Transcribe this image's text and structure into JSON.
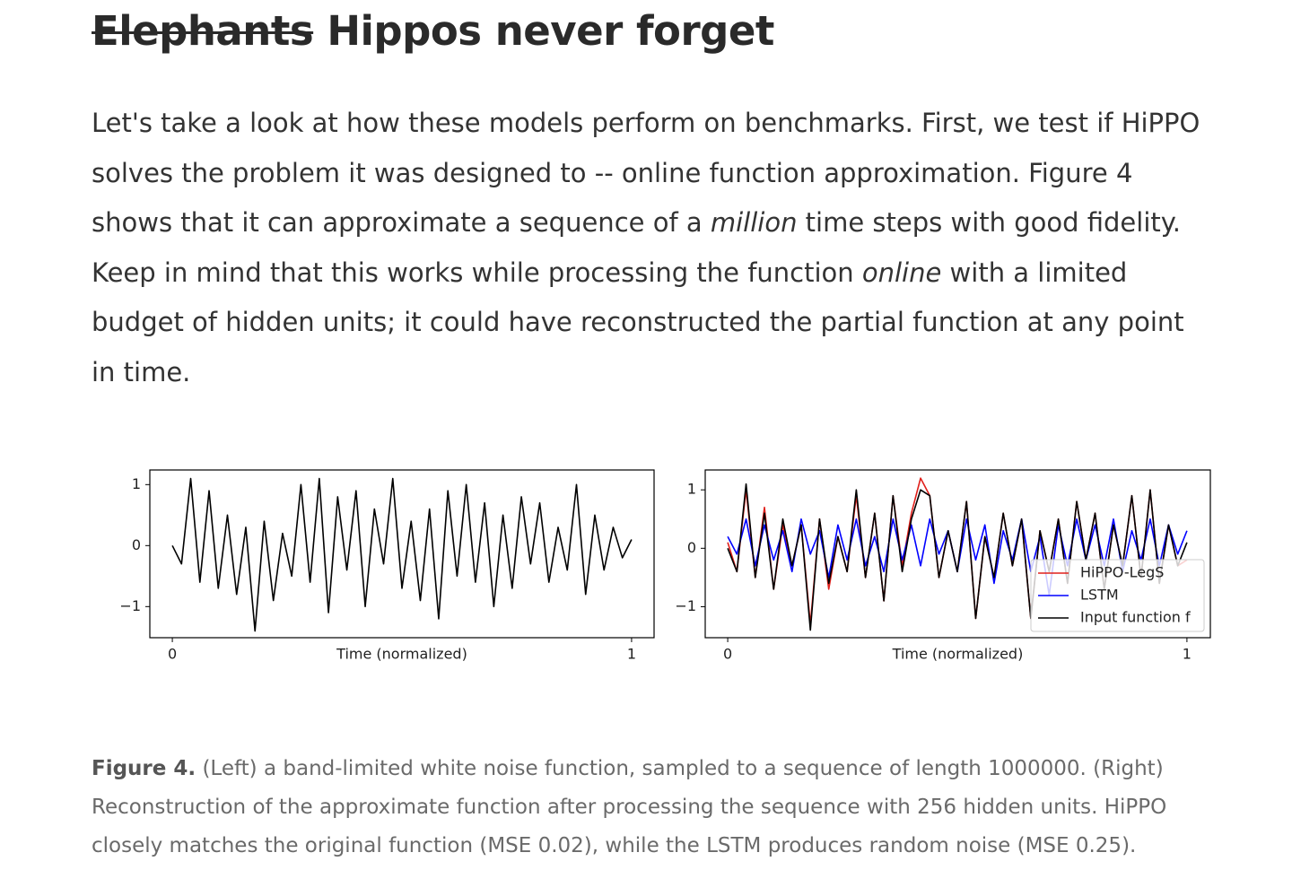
{
  "heading": {
    "struck": "Elephants",
    "title": "Hippos never forget"
  },
  "paragraph": {
    "parts": [
      "Let's take a look at how these models perform on benchmarks. First, we test if HiPPO solves the problem it was designed to -- online function approximation. Figure 4 shows that it can approximate a sequence of a ",
      "million",
      " time steps with good fidelity. Keep in mind that this works while processing the function ",
      "online",
      " with a limited budget of hidden units; it could have reconstructed the partial function at any point in time."
    ]
  },
  "chart_data": [
    {
      "type": "line",
      "xlabel": "Time (normalized)",
      "xlim": [
        -0.049,
        1.049
      ],
      "xticks": [
        0,
        1
      ],
      "ylim": [
        -1.51,
        1.24
      ],
      "yticks": [
        {
          "value": -1,
          "label": "−1"
        },
        0,
        1
      ],
      "x": [
        0,
        0.02,
        0.04,
        0.06,
        0.08,
        0.1,
        0.12,
        0.14,
        0.16,
        0.18,
        0.2,
        0.22,
        0.24,
        0.26,
        0.28,
        0.3,
        0.32,
        0.34,
        0.36,
        0.38,
        0.4,
        0.42,
        0.44,
        0.46,
        0.48,
        0.5,
        0.52,
        0.54,
        0.56,
        0.58,
        0.6,
        0.62,
        0.64,
        0.66,
        0.68,
        0.7,
        0.72,
        0.74,
        0.76,
        0.78,
        0.8,
        0.82,
        0.84,
        0.86,
        0.88,
        0.9,
        0.92,
        0.94,
        0.96,
        0.98,
        1
      ],
      "series": [
        {
          "color": "#000000",
          "values": [
            0,
            -0.3,
            1.1,
            -0.6,
            0.9,
            -0.7,
            0.5,
            -0.8,
            0.3,
            -1.4,
            0.4,
            -0.9,
            0.2,
            -0.5,
            1.0,
            -0.6,
            1.1,
            -1.1,
            0.8,
            -0.4,
            0.9,
            -1.0,
            0.6,
            -0.3,
            1.1,
            -0.7,
            0.4,
            -0.9,
            0.6,
            -1.2,
            0.9,
            -0.5,
            1.0,
            -0.6,
            0.7,
            -1.0,
            0.5,
            -0.7,
            0.8,
            -0.3,
            0.7,
            -0.6,
            0.3,
            -0.4,
            1.0,
            -0.8,
            0.5,
            -0.4,
            0.3,
            -0.2,
            0.1
          ]
        }
      ]
    },
    {
      "type": "line",
      "xlabel": "Time (normalized)",
      "xlim": [
        -0.049,
        1.051
      ],
      "xticks": [
        0,
        1
      ],
      "ylim": [
        -1.53,
        1.34
      ],
      "yticks": [
        {
          "value": -1,
          "label": "−1"
        },
        0,
        1
      ],
      "legend": "lower right",
      "x": [
        0,
        0.02,
        0.04,
        0.06,
        0.08,
        0.1,
        0.12,
        0.14,
        0.16,
        0.18,
        0.2,
        0.22,
        0.24,
        0.26,
        0.28,
        0.3,
        0.32,
        0.34,
        0.36,
        0.38,
        0.4,
        0.42,
        0.44,
        0.46,
        0.48,
        0.5,
        0.52,
        0.54,
        0.56,
        0.58,
        0.6,
        0.62,
        0.64,
        0.66,
        0.68,
        0.7,
        0.72,
        0.74,
        0.76,
        0.78,
        0.8,
        0.82,
        0.84,
        0.86,
        0.88,
        0.9,
        0.92,
        0.94,
        0.96,
        0.98,
        1
      ],
      "series": [
        {
          "name": "HiPPO-LegS",
          "color": "#e0201b",
          "values": [
            0.1,
            -0.4,
            1.0,
            -0.5,
            0.7,
            -0.7,
            0.4,
            -0.3,
            0.4,
            -1.3,
            0.5,
            -0.7,
            0.2,
            -0.4,
            0.9,
            -0.5,
            0.6,
            -0.9,
            0.9,
            -0.3,
            0.6,
            1.2,
            0.9,
            -0.5,
            0.3,
            -0.4,
            0.8,
            -1.2,
            0.2,
            -0.5,
            0.6,
            -0.3,
            0.5,
            -1.2,
            0.3,
            -0.4,
            0.5,
            -0.6,
            0.8,
            -0.2,
            0.6,
            -0.7,
            0.4,
            -0.3,
            0.9,
            -0.5,
            1.0,
            -0.6,
            0.4,
            -0.3,
            -0.2
          ]
        },
        {
          "name": "LSTM",
          "color": "#0000ff",
          "values": [
            0.2,
            -0.1,
            0.5,
            -0.3,
            0.4,
            -0.2,
            0.3,
            -0.4,
            0.5,
            -0.1,
            0.3,
            -0.5,
            0.4,
            -0.2,
            0.5,
            -0.3,
            0.2,
            -0.4,
            0.5,
            -0.2,
            0.4,
            -0.3,
            0.5,
            -0.1,
            0.3,
            -0.4,
            0.5,
            -0.2,
            0.4,
            -0.6,
            0.3,
            -0.2,
            0.5,
            -0.4,
            0.2,
            -0.8,
            0.4,
            -0.3,
            0.5,
            -0.2,
            0.4,
            -0.3,
            0.5,
            -0.4,
            0.3,
            -0.2,
            0.5,
            -0.3,
            0.4,
            -0.1,
            0.3
          ]
        },
        {
          "name": "Input function f",
          "color": "#000000",
          "values": [
            0,
            -0.4,
            1.1,
            -0.5,
            0.6,
            -0.7,
            0.5,
            -0.3,
            0.4,
            -1.4,
            0.5,
            -0.6,
            0.2,
            -0.4,
            1.0,
            -0.5,
            0.6,
            -0.9,
            0.9,
            -0.4,
            0.5,
            1.0,
            0.9,
            -0.5,
            0.3,
            -0.4,
            0.8,
            -1.2,
            0.2,
            -0.5,
            0.6,
            -0.3,
            0.5,
            -1.2,
            0.3,
            -0.4,
            0.5,
            -0.6,
            0.8,
            -0.2,
            0.6,
            -0.7,
            0.4,
            -0.3,
            0.9,
            -0.5,
            1.0,
            -0.6,
            0.4,
            -0.3,
            0.1
          ]
        }
      ]
    }
  ],
  "caption": {
    "label": "Figure 4.",
    "text": "(Left) a band-limited white noise function, sampled to a sequence of length 1000000. (Right) Reconstruction of the approximate function after processing the sequence with 256 hidden units. HiPPO closely matches the original function (MSE 0.02), while the LSTM produces random noise (MSE 0.25)."
  }
}
